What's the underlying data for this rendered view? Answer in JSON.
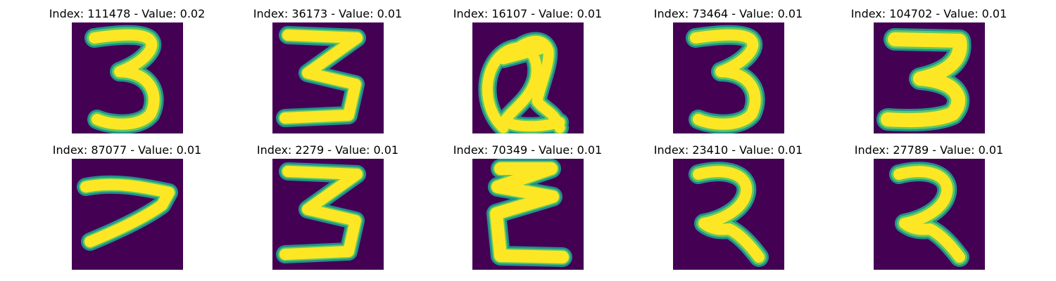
{
  "chart_data": {
    "type": "image_grid",
    "colormap": {
      "name": "viridis",
      "background": "#440154",
      "mid": "#21918c",
      "edge": "#5ec962",
      "foreground": "#fde725"
    },
    "panels": [
      {
        "title": "Index: 111478 - Value: 0.02",
        "index": 111478,
        "value": 0.02,
        "glyph": "3"
      },
      {
        "title": "Index: 36173 - Value: 0.01",
        "index": 36173,
        "value": 0.01,
        "glyph": "3-angular"
      },
      {
        "title": "Index: 16107 - Value: 0.01",
        "index": 16107,
        "value": 0.01,
        "glyph": "a-loop"
      },
      {
        "title": "Index: 73464 - Value: 0.01",
        "index": 73464,
        "value": 0.01,
        "glyph": "3"
      },
      {
        "title": "Index: 104702 - Value: 0.01",
        "index": 104702,
        "value": 0.01,
        "glyph": "3-bold"
      },
      {
        "title": "Index: 87077 - Value: 0.01",
        "index": 87077,
        "value": 0.01,
        "glyph": "7"
      },
      {
        "title": "Index: 2279 - Value: 0.01",
        "index": 2279,
        "value": 0.01,
        "glyph": "3-angular"
      },
      {
        "title": "Index: 70349 - Value: 0.01",
        "index": 70349,
        "value": 0.01,
        "glyph": "E"
      },
      {
        "title": "Index: 23410 - Value: 0.01",
        "index": 23410,
        "value": 0.01,
        "glyph": "2-curl"
      },
      {
        "title": "Index: 27789 - Value: 0.01",
        "index": 27789,
        "value": 0.01,
        "glyph": "2-curl"
      }
    ]
  }
}
